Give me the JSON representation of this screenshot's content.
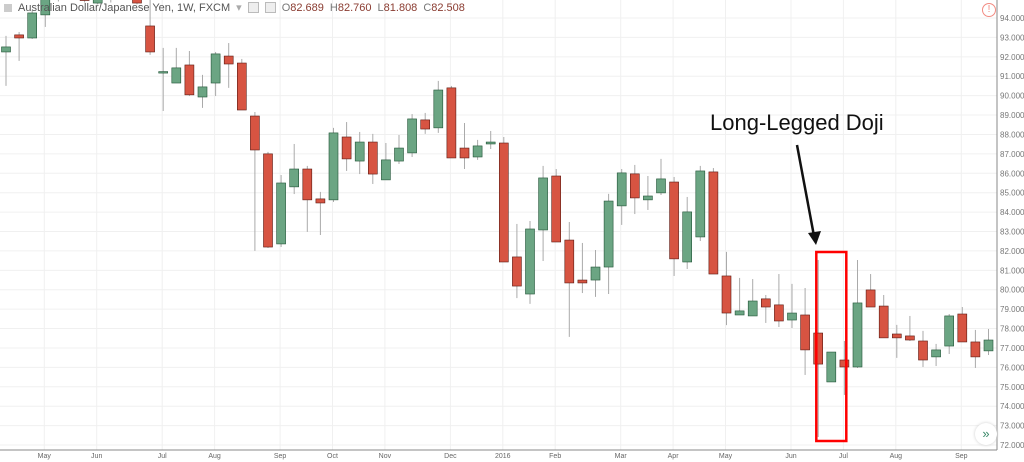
{
  "header": {
    "symbol": "Australian Dollar/Japanese Yen, 1W, FXCM",
    "open_label": "O",
    "open": "82.689",
    "high_label": "H",
    "high": "82.760",
    "low_label": "L",
    "low": "81.808",
    "close_label": "C",
    "close": "82.508"
  },
  "annotation": {
    "text": "Long-Legged Doji",
    "highlight_color": "#ff0000"
  },
  "colors": {
    "up": "#6ba583",
    "up_border": "#225437",
    "down": "#d75442",
    "down_border": "#5b1a13",
    "grid": "#f0f0f0"
  },
  "chart_data": {
    "type": "candlestick",
    "title": "Australian Dollar/Japanese Yen, 1W, FXCM",
    "ylim": [
      72,
      94.9
    ],
    "grid": true,
    "y_ticks": [
      "94.000",
      "93.000",
      "92.000",
      "91.000",
      "90.000",
      "89.000",
      "88.000",
      "87.000",
      "86.000",
      "85.000",
      "84.000",
      "83.000",
      "82.000",
      "81.000",
      "80.000",
      "79.000",
      "78.000",
      "77.000",
      "76.000",
      "75.000",
      "74.000",
      "73.000",
      "72.000"
    ],
    "x_ticks": [
      {
        "label": "May",
        "index": 3
      },
      {
        "label": "Jun",
        "index": 7
      },
      {
        "label": "Jul",
        "index": 12
      },
      {
        "label": "Aug",
        "index": 16
      },
      {
        "label": "Sep",
        "index": 21
      },
      {
        "label": "Oct",
        "index": 25
      },
      {
        "label": "Nov",
        "index": 29
      },
      {
        "label": "Dec",
        "index": 34
      },
      {
        "label": "2016",
        "index": 38
      },
      {
        "label": "Feb",
        "index": 42
      },
      {
        "label": "Mar",
        "index": 47
      },
      {
        "label": "Apr",
        "index": 51
      },
      {
        "label": "May",
        "index": 55
      },
      {
        "label": "Jun",
        "index": 60
      },
      {
        "label": "Jul",
        "index": 64
      },
      {
        "label": "Aug",
        "index": 68
      },
      {
        "label": "Sep",
        "index": 73
      }
    ],
    "highlight_index": 63,
    "candles": [
      [
        92.25,
        93.08,
        90.5,
        92.51
      ],
      [
        93.13,
        93.28,
        91.79,
        92.97
      ],
      [
        92.97,
        94.41,
        92.92,
        94.26
      ],
      [
        94.16,
        95.5,
        93.54,
        95.1
      ],
      [
        94.95,
        96.0,
        94.85,
        95.6
      ],
      [
        95.5,
        96.3,
        95.2,
        96.0
      ],
      [
        95.4,
        95.6,
        94.8,
        94.9
      ],
      [
        94.77,
        95.6,
        94.7,
        95.3
      ],
      [
        95.2,
        95.9,
        94.8,
        95.6
      ],
      [
        96.0,
        96.3,
        95.3,
        95.6
      ],
      [
        95.3,
        95.5,
        94.7,
        94.77
      ],
      [
        93.59,
        95.2,
        92.1,
        92.25
      ],
      [
        91.2,
        92.46,
        89.21,
        91.24
      ],
      [
        90.65,
        92.46,
        90.65,
        91.43
      ],
      [
        91.58,
        92.3,
        89.98,
        90.04
      ],
      [
        89.93,
        91.07,
        89.37,
        90.45
      ],
      [
        90.65,
        92.25,
        89.98,
        92.15
      ],
      [
        92.04,
        92.71,
        90.4,
        91.63
      ],
      [
        91.68,
        91.89,
        89.26,
        89.26
      ],
      [
        88.95,
        89.16,
        82.0,
        87.2
      ],
      [
        87.0,
        87.1,
        82.15,
        82.2
      ],
      [
        82.36,
        85.91,
        82.2,
        85.5
      ],
      [
        85.3,
        87.51,
        84.93,
        86.22
      ],
      [
        86.22,
        86.38,
        82.98,
        84.63
      ],
      [
        84.68,
        85.04,
        82.82,
        84.47
      ],
      [
        84.63,
        88.34,
        84.52,
        88.08
      ],
      [
        87.87,
        88.64,
        86.12,
        86.74
      ],
      [
        86.63,
        88.13,
        85.96,
        87.61
      ],
      [
        87.61,
        88.03,
        85.45,
        85.96
      ],
      [
        85.66,
        87.56,
        85.66,
        86.69
      ],
      [
        86.63,
        87.97,
        86.48,
        87.3
      ],
      [
        87.05,
        89.05,
        86.84,
        88.8
      ],
      [
        88.75,
        89.11,
        88.03,
        88.28
      ],
      [
        88.34,
        90.76,
        88.08,
        90.29
      ],
      [
        90.4,
        90.5,
        86.79,
        86.79
      ],
      [
        87.3,
        88.59,
        86.22,
        86.79
      ],
      [
        86.84,
        87.72,
        86.69,
        87.41
      ],
      [
        87.51,
        88.18,
        87.25,
        87.61
      ],
      [
        87.56,
        87.87,
        81.43,
        81.43
      ],
      [
        81.69,
        83.39,
        79.57,
        80.19
      ],
      [
        79.78,
        83.54,
        79.27,
        83.13
      ],
      [
        83.08,
        86.38,
        81.48,
        85.76
      ],
      [
        85.86,
        86.22,
        82.46,
        82.46
      ],
      [
        82.56,
        83.49,
        77.57,
        80.35
      ],
      [
        80.5,
        82.41,
        79.83,
        80.35
      ],
      [
        80.5,
        82.05,
        79.63,
        81.17
      ],
      [
        81.17,
        84.94,
        79.78,
        84.57
      ],
      [
        84.32,
        86.22,
        83.34,
        86.02
      ],
      [
        85.97,
        86.43,
        83.9,
        84.73
      ],
      [
        84.63,
        85.86,
        84.11,
        84.83
      ],
      [
        84.99,
        86.74,
        84.88,
        85.71
      ],
      [
        85.55,
        85.81,
        80.71,
        81.59
      ],
      [
        81.43,
        84.78,
        81.07,
        84.01
      ],
      [
        82.72,
        86.38,
        82.51,
        86.12
      ],
      [
        86.07,
        86.27,
        80.81,
        80.81
      ],
      [
        80.71,
        81.95,
        78.18,
        78.8
      ],
      [
        78.7,
        80.61,
        78.7,
        78.91
      ],
      [
        78.65,
        80.55,
        78.65,
        79.42
      ],
      [
        79.53,
        79.73,
        78.29,
        79.11
      ],
      [
        79.22,
        80.81,
        78.08,
        78.39
      ],
      [
        78.44,
        80.3,
        78.03,
        78.8
      ],
      [
        78.7,
        80.09,
        75.61,
        76.9
      ],
      [
        77.77,
        81.53,
        72.41,
        76.17
      ],
      [
        75.25,
        76.79,
        75.25,
        76.79
      ],
      [
        76.38,
        77.36,
        74.58,
        76.02
      ],
      [
        76.02,
        81.53,
        75.97,
        79.32
      ],
      [
        79.99,
        80.81,
        79.11,
        79.11
      ],
      [
        79.16,
        79.73,
        77.52,
        77.52
      ],
      [
        77.72,
        78.19,
        76.49,
        77.52
      ],
      [
        77.62,
        78.65,
        77.36,
        77.41
      ],
      [
        77.36,
        77.88,
        76.02,
        76.38
      ],
      [
        76.54,
        77.21,
        76.07,
        76.9
      ],
      [
        77.1,
        78.75,
        76.69,
        78.65
      ],
      [
        78.75,
        79.11,
        77.31,
        77.31
      ],
      [
        77.31,
        77.93,
        75.97,
        76.54
      ],
      [
        76.85,
        77.98,
        76.64,
        77.41
      ]
    ]
  }
}
